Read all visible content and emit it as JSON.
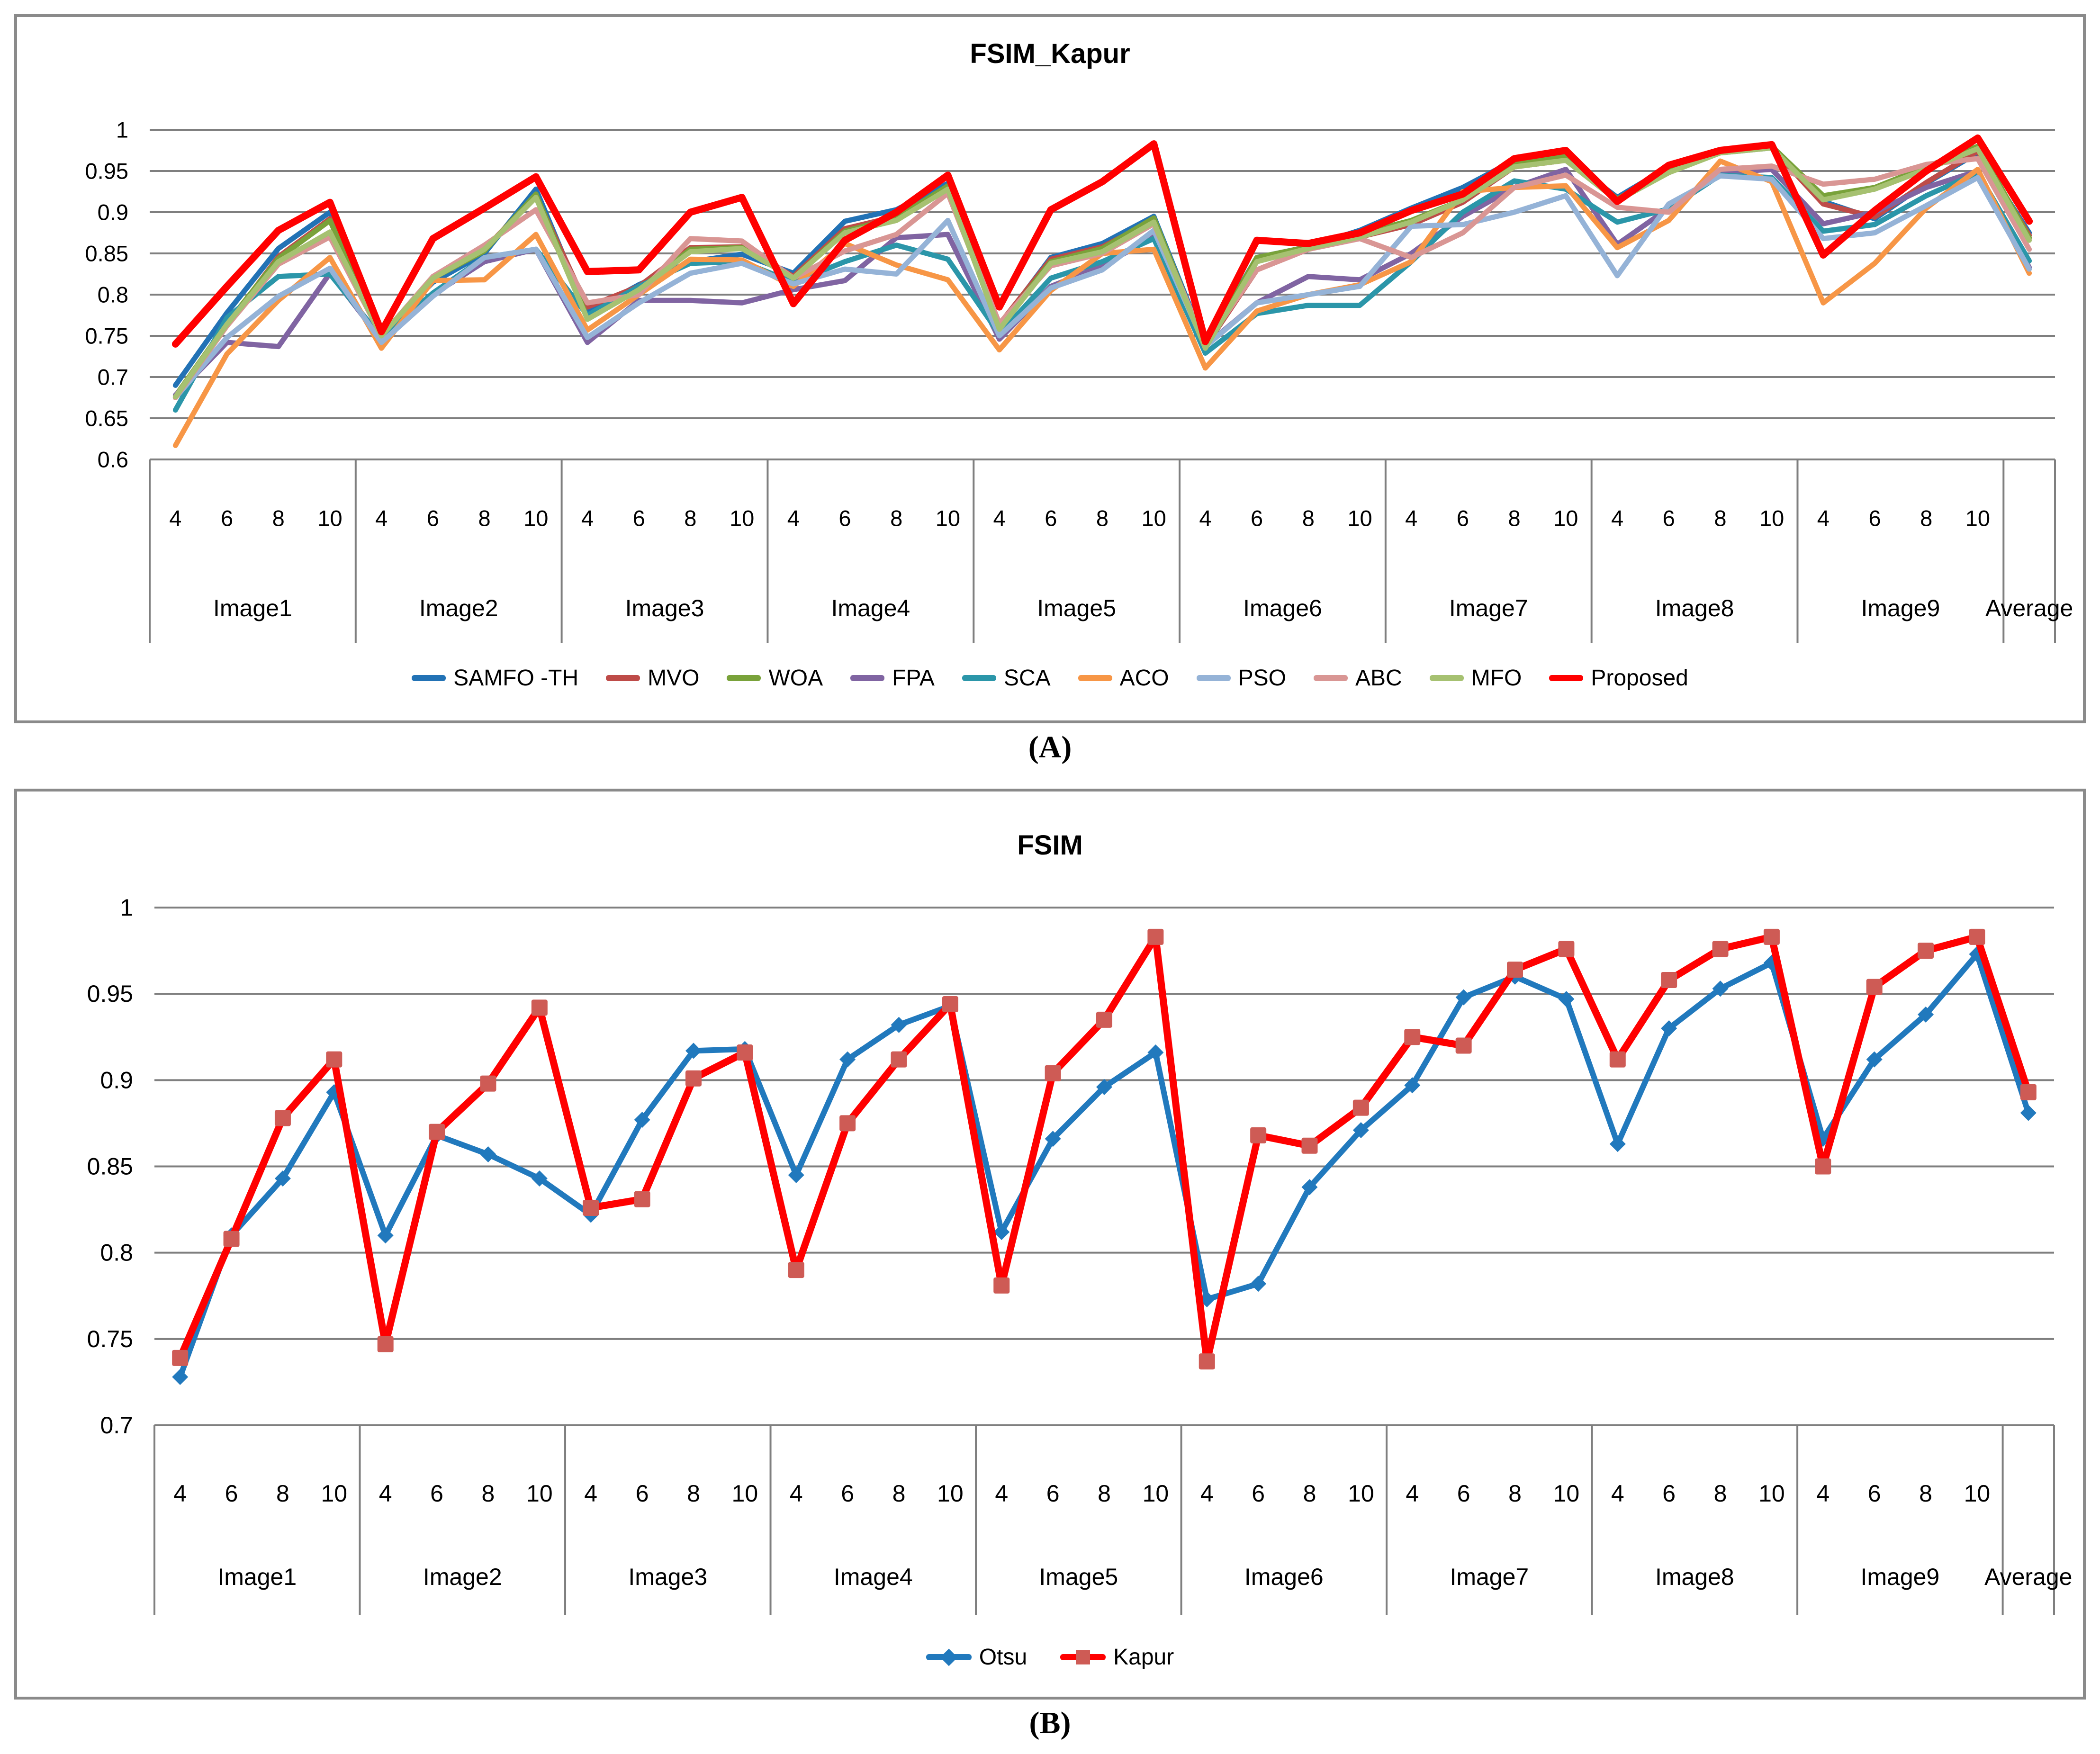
{
  "figure": {
    "caption_a": "(A)",
    "caption_b": "(B)"
  },
  "chart_data": [
    {
      "type": "line",
      "title": "FSIM_Kapur",
      "xlabel": "",
      "ylabel": "",
      "ylim": [
        0.6,
        1.0
      ],
      "ytick_step": 0.05,
      "ytick_labels": [
        "1",
        "0.95",
        "0.9",
        "0.85",
        "0.8",
        "0.75",
        "0.7",
        "0.65",
        "0.6"
      ],
      "grid": true,
      "legend_position": "bottom",
      "thresholds": [
        "4",
        "6",
        "8",
        "10"
      ],
      "groups": [
        "Image1",
        "Image2",
        "Image3",
        "Image4",
        "Image5",
        "Image6",
        "Image7",
        "Image8",
        "Image9",
        "Average"
      ],
      "slots_per_group": [
        4,
        4,
        4,
        4,
        4,
        4,
        4,
        4,
        4,
        1
      ],
      "series": [
        {
          "name": "SAMFO -TH",
          "color": "#2272B5",
          "values": [
            0.69,
            0.778,
            0.856,
            0.9,
            0.752,
            0.815,
            0.85,
            0.928,
            0.778,
            0.812,
            0.84,
            0.849,
            0.826,
            0.889,
            0.903,
            0.935,
            0.762,
            0.845,
            0.862,
            0.895,
            0.739,
            0.845,
            0.858,
            0.878,
            0.905,
            0.93,
            0.963,
            0.965,
            0.918,
            0.955,
            0.972,
            0.978,
            0.913,
            0.892,
            0.935,
            0.972,
            0.875
          ]
        },
        {
          "name": "MVO",
          "color": "#BE4B48",
          "values": [
            0.675,
            0.763,
            0.846,
            0.892,
            0.748,
            0.82,
            0.855,
            0.92,
            0.785,
            0.81,
            0.857,
            0.858,
            0.822,
            0.88,
            0.895,
            0.93,
            0.764,
            0.843,
            0.858,
            0.89,
            0.737,
            0.83,
            0.855,
            0.87,
            0.885,
            0.912,
            0.955,
            0.963,
            0.916,
            0.952,
            0.973,
            0.978,
            0.91,
            0.894,
            0.936,
            0.974,
            0.872
          ]
        },
        {
          "name": "WOA",
          "color": "#79A23A",
          "values": [
            0.677,
            0.765,
            0.844,
            0.89,
            0.75,
            0.82,
            0.853,
            0.922,
            0.772,
            0.806,
            0.855,
            0.857,
            0.82,
            0.877,
            0.893,
            0.932,
            0.761,
            0.84,
            0.856,
            0.893,
            0.736,
            0.845,
            0.858,
            0.874,
            0.89,
            0.915,
            0.958,
            0.968,
            0.916,
            0.95,
            0.975,
            0.98,
            0.92,
            0.93,
            0.955,
            0.98,
            0.869
          ]
        },
        {
          "name": "FPA",
          "color": "#8064A2",
          "values": [
            0.678,
            0.742,
            0.737,
            0.826,
            0.745,
            0.8,
            0.84,
            0.855,
            0.742,
            0.793,
            0.793,
            0.79,
            0.806,
            0.817,
            0.869,
            0.873,
            0.746,
            0.81,
            0.835,
            0.87,
            0.738,
            0.79,
            0.822,
            0.818,
            0.85,
            0.895,
            0.93,
            0.952,
            0.861,
            0.905,
            0.948,
            0.952,
            0.886,
            0.9,
            0.93,
            0.95,
            0.833
          ]
        },
        {
          "name": "SCA",
          "color": "#2B96A9",
          "values": [
            0.66,
            0.772,
            0.822,
            0.825,
            0.748,
            0.802,
            0.845,
            0.855,
            0.775,
            0.81,
            0.838,
            0.84,
            0.815,
            0.84,
            0.86,
            0.843,
            0.752,
            0.82,
            0.84,
            0.868,
            0.729,
            0.777,
            0.787,
            0.787,
            0.84,
            0.9,
            0.938,
            0.928,
            0.888,
            0.904,
            0.945,
            0.942,
            0.877,
            0.885,
            0.92,
            0.948,
            0.841
          ]
        },
        {
          "name": "ACO",
          "color": "#F79646",
          "values": [
            0.617,
            0.728,
            0.793,
            0.845,
            0.735,
            0.817,
            0.818,
            0.873,
            0.757,
            0.8,
            0.843,
            0.842,
            0.81,
            0.862,
            0.836,
            0.818,
            0.733,
            0.805,
            0.85,
            0.855,
            0.711,
            0.78,
            0.8,
            0.812,
            0.84,
            0.925,
            0.93,
            0.932,
            0.857,
            0.89,
            0.962,
            0.937,
            0.79,
            0.838,
            0.905,
            0.952,
            0.826
          ]
        },
        {
          "name": "PSO",
          "color": "#95B3D7",
          "values": [
            0.675,
            0.748,
            0.798,
            0.832,
            0.742,
            0.798,
            0.845,
            0.855,
            0.748,
            0.79,
            0.826,
            0.838,
            0.813,
            0.831,
            0.825,
            0.89,
            0.75,
            0.808,
            0.83,
            0.878,
            0.737,
            0.79,
            0.8,
            0.81,
            0.883,
            0.885,
            0.9,
            0.92,
            0.823,
            0.91,
            0.944,
            0.94,
            0.868,
            0.875,
            0.908,
            0.942,
            0.831
          ]
        },
        {
          "name": "ABC",
          "color": "#D99694",
          "values": [
            0.675,
            0.762,
            0.837,
            0.87,
            0.75,
            0.822,
            0.86,
            0.903,
            0.79,
            0.8,
            0.868,
            0.865,
            0.82,
            0.853,
            0.873,
            0.923,
            0.765,
            0.835,
            0.85,
            0.886,
            0.74,
            0.83,
            0.855,
            0.868,
            0.845,
            0.875,
            0.93,
            0.945,
            0.906,
            0.9,
            0.952,
            0.956,
            0.934,
            0.94,
            0.958,
            0.965,
            0.855
          ]
        },
        {
          "name": "MFO",
          "color": "#A6C171",
          "values": [
            0.676,
            0.764,
            0.84,
            0.876,
            0.75,
            0.82,
            0.855,
            0.918,
            0.77,
            0.806,
            0.852,
            0.856,
            0.82,
            0.875,
            0.89,
            0.928,
            0.758,
            0.838,
            0.852,
            0.888,
            0.735,
            0.84,
            0.856,
            0.87,
            0.888,
            0.915,
            0.955,
            0.963,
            0.914,
            0.948,
            0.972,
            0.978,
            0.915,
            0.928,
            0.952,
            0.977,
            0.866
          ]
        },
        {
          "name": "Proposed",
          "color": "#FF0000",
          "thick": true,
          "values": [
            0.74,
            0.81,
            0.878,
            0.912,
            0.755,
            0.868,
            0.905,
            0.943,
            0.828,
            0.83,
            0.9,
            0.918,
            0.789,
            0.866,
            0.9,
            0.945,
            0.785,
            0.903,
            0.937,
            0.983,
            0.743,
            0.866,
            0.862,
            0.875,
            0.902,
            0.922,
            0.965,
            0.975,
            0.913,
            0.957,
            0.975,
            0.982,
            0.848,
            0.902,
            0.95,
            0.99,
            0.889
          ]
        }
      ]
    },
    {
      "type": "line",
      "title": "FSIM",
      "xlabel": "",
      "ylabel": "",
      "ylim": [
        0.7,
        1.0
      ],
      "ytick_step": 0.05,
      "ytick_labels": [
        "1",
        "0.95",
        "0.9",
        "0.85",
        "0.8",
        "0.75",
        "0.7"
      ],
      "grid": true,
      "legend_position": "bottom",
      "thresholds": [
        "4",
        "6",
        "8",
        "10"
      ],
      "groups": [
        "Image1",
        "Image2",
        "Image3",
        "Image4",
        "Image5",
        "Image6",
        "Image7",
        "Image8",
        "Image9",
        "Average"
      ],
      "slots_per_group": [
        4,
        4,
        4,
        4,
        4,
        4,
        4,
        4,
        4,
        1
      ],
      "series": [
        {
          "name": "Otsu",
          "color": "#2179BD",
          "marker": "diamond",
          "marker_color": "#2179BD",
          "values": [
            0.728,
            0.81,
            0.843,
            0.893,
            0.81,
            0.868,
            0.857,
            0.843,
            0.822,
            0.877,
            0.917,
            0.918,
            0.845,
            0.912,
            0.932,
            0.943,
            0.812,
            0.866,
            0.896,
            0.916,
            0.773,
            0.782,
            0.838,
            0.871,
            0.897,
            0.948,
            0.96,
            0.947,
            0.863,
            0.93,
            0.953,
            0.968,
            0.866,
            0.912,
            0.938,
            0.973,
            0.881
          ]
        },
        {
          "name": "Kapur",
          "color": "#FF0000",
          "thick": true,
          "marker": "square",
          "marker_color": "#CE5B55",
          "values": [
            0.739,
            0.808,
            0.878,
            0.912,
            0.747,
            0.87,
            0.898,
            0.942,
            0.826,
            0.831,
            0.901,
            0.916,
            0.79,
            0.875,
            0.912,
            0.944,
            0.781,
            0.904,
            0.935,
            0.983,
            0.737,
            0.868,
            0.862,
            0.884,
            0.925,
            0.92,
            0.964,
            0.976,
            0.912,
            0.958,
            0.976,
            0.983,
            0.85,
            0.954,
            0.975,
            0.983,
            0.893
          ]
        }
      ]
    }
  ]
}
